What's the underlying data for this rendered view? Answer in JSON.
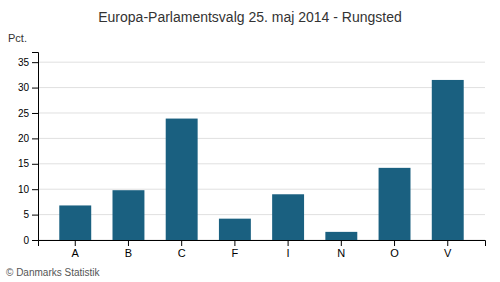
{
  "chart_data": {
    "type": "bar",
    "title": "Europa-Parlamentsvalg 25. maj 2014 - Rungsted",
    "ylabel": "Pct.",
    "footer": "© Danmarks Statistik",
    "categories": [
      "A",
      "B",
      "C",
      "F",
      "I",
      "N",
      "O",
      "V"
    ],
    "values": [
      6.8,
      9.8,
      23.9,
      4.2,
      9.0,
      1.6,
      14.2,
      31.5
    ],
    "color": "#1a6080",
    "ylim": [
      0,
      37
    ],
    "yticks": [
      0,
      5,
      10,
      15,
      20,
      25,
      30,
      35
    ],
    "grid": true
  }
}
